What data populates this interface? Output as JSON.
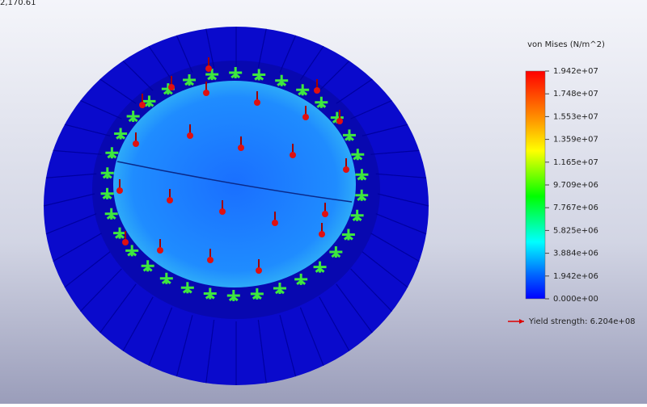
{
  "header": {
    "corner_text": "2,170.61"
  },
  "legend": {
    "title": "von Mises (N/m^2)",
    "ticks": [
      "1.942e+07",
      "1.748e+07",
      "1.553e+07",
      "1.359e+07",
      "1.165e+07",
      "9.709e+06",
      "7.767e+06",
      "5.825e+06",
      "3.884e+06",
      "1.942e+06",
      "0.000e+00"
    ],
    "yield_label": "Yield strength: 6.204e+08"
  }
}
